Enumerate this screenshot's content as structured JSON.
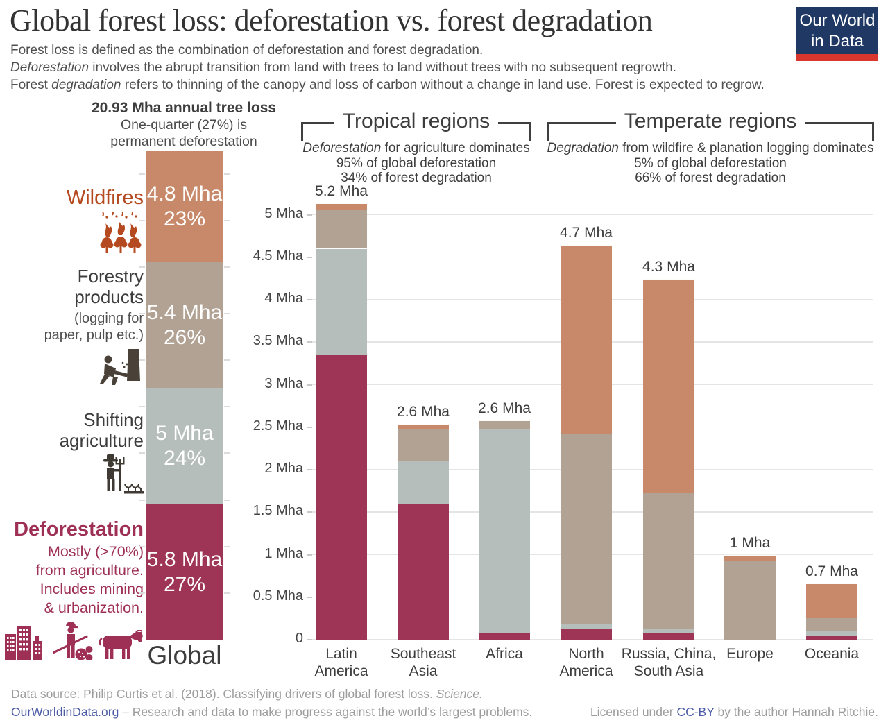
{
  "header": {
    "title": "Global forest loss: deforestation vs. forest degradation",
    "subtitle": {
      "line1": "Forest loss is defined as the combination of deforestation and forest degradation.",
      "line2_italic": "Deforestation",
      "line2_rest": " involves the abrupt transition from land with trees to land without trees with no subsequent regrowth.",
      "line3_pre": "Forest ",
      "line3_italic": "degradation",
      "line3_rest": " refers to thinning of the canopy and loss of carbon without  a change in land use. Forest is expected to regrow."
    },
    "logo": {
      "line1": "Our World",
      "line2": "in Data",
      "bg_color": "#1f3864",
      "stripe_color": "#d9362e"
    }
  },
  "global": {
    "headline_bold": "20.93 Mha annual tree loss",
    "headline_line2": "One-quarter (27%) is",
    "headline_line3": "permanent deforestation",
    "axis_label": "Global",
    "total_mha": 20.93,
    "segments": [
      {
        "name": "Deforestation",
        "value_mha": 5.8,
        "label_value": "5.8 Mha",
        "label_pct": "27%",
        "color": "#9e3456"
      },
      {
        "name": "Shifting agriculture",
        "value_mha": 5.0,
        "label_value": "5 Mha",
        "label_pct": "24%",
        "color": "#b6bebb"
      },
      {
        "name": "Forestry products",
        "value_mha": 5.4,
        "label_value": "5.4 Mha",
        "label_pct": "26%",
        "color": "#b1a294"
      },
      {
        "name": "Wildfires",
        "value_mha": 4.8,
        "label_value": "4.8 Mha",
        "label_pct": "23%",
        "color": "#c8896a"
      }
    ],
    "annotations": {
      "wildfires": {
        "title": "Wildfires",
        "color": "#b5491f"
      },
      "forestry": {
        "title_line1": "Forestry",
        "title_line2": "products",
        "sub_line1": "(logging for",
        "sub_line2": "paper, pulp etc.)"
      },
      "shifting": {
        "title_line1": "Shifting",
        "title_line2": "agriculture"
      },
      "deforestation": {
        "title": "Deforestation",
        "sub_lines": [
          "Mostly (>70%)",
          "from agriculture.",
          "Includes mining",
          "& urbanization."
        ],
        "color": "#9e2f55"
      }
    }
  },
  "groups": [
    {
      "title": "Tropical regions",
      "sub1_italic": "Deforestation",
      "sub1_rest": " for agriculture dominates",
      "sub2": "95% of global deforestation",
      "sub3": "34% of forest degradation"
    },
    {
      "title": "Temperate regions",
      "sub1_italic": "Degradation",
      "sub1_rest": " from wildfire & planation logging dominates",
      "sub2": "5% of global deforestation",
      "sub3": "66% of forest degradation"
    }
  ],
  "chart_data": {
    "type": "bar",
    "stacked": true,
    "unit": "Mha",
    "title": "Forest loss by region (deforestation vs. degradation drivers)",
    "xlabel": "",
    "ylabel": "Mha",
    "ylim": [
      0,
      5.5
    ],
    "grid": true,
    "legend_position": "none",
    "yticks": [
      {
        "v": 0,
        "label": "0"
      },
      {
        "v": 0.5,
        "label": "0.5 Mha"
      },
      {
        "v": 1,
        "label": "1 Mha"
      },
      {
        "v": 1.5,
        "label": "1.5 Mha"
      },
      {
        "v": 2,
        "label": "2 Mha"
      },
      {
        "v": 2.5,
        "label": "2.5 Mha"
      },
      {
        "v": 3,
        "label": "3 Mha"
      },
      {
        "v": 3.5,
        "label": "3.5 Mha"
      },
      {
        "v": 4,
        "label": "4 Mha"
      },
      {
        "v": 4.5,
        "label": "4.5 Mha"
      },
      {
        "v": 5,
        "label": "5 Mha"
      }
    ],
    "categories": [
      "Latin America",
      "Southeast Asia",
      "Africa",
      "North America",
      "Russia, China, South Asia",
      "Europe",
      "Oceania"
    ],
    "category_label_lines": [
      [
        "Latin",
        "America"
      ],
      [
        "Southeast",
        "Asia"
      ],
      [
        "Africa"
      ],
      [
        "North",
        "America"
      ],
      [
        "Russia, China,",
        "South Asia"
      ],
      [
        "Europe"
      ],
      [
        "Oceania"
      ]
    ],
    "total_labels": [
      "5.2 Mha",
      "2.6 Mha",
      "2.6 Mha",
      "4.7 Mha",
      "4.3 Mha",
      "1 Mha",
      "0.7 Mha"
    ],
    "category_groups": [
      "Tropical regions",
      "Tropical regions",
      "Tropical regions",
      "Temperate regions",
      "Temperate regions",
      "Temperate regions",
      "Temperate regions"
    ],
    "series": [
      {
        "name": "Deforestation",
        "color": "#9e3456",
        "values": [
          3.35,
          1.6,
          0.07,
          0.13,
          0.08,
          0.0,
          0.05
        ]
      },
      {
        "name": "Shifting agriculture",
        "color": "#b6bebb",
        "values": [
          1.25,
          0.5,
          2.4,
          0.05,
          0.05,
          0.0,
          0.06
        ]
      },
      {
        "name": "Forestry products",
        "color": "#b1a294",
        "values": [
          0.46,
          0.37,
          0.1,
          2.24,
          1.6,
          0.93,
          0.14
        ]
      },
      {
        "name": "Wildfires",
        "color": "#c8896a",
        "values": [
          0.07,
          0.06,
          0.0,
          2.22,
          2.51,
          0.06,
          0.4
        ]
      }
    ]
  },
  "footer": {
    "line1_pre": "Data source: Philip Curtis et al. (2018). Classifying drivers of global forest loss. ",
    "line1_italic": "Science.",
    "link_text": "OurWorldinData.org",
    "line2_rest": " – Research and data to make progress against the world’s largest problems.",
    "license_pre": "Licensed under ",
    "license_link": "CC-BY",
    "license_post": " by the author Hannah Ritchie.",
    "link_color": "#4a5aa5"
  }
}
